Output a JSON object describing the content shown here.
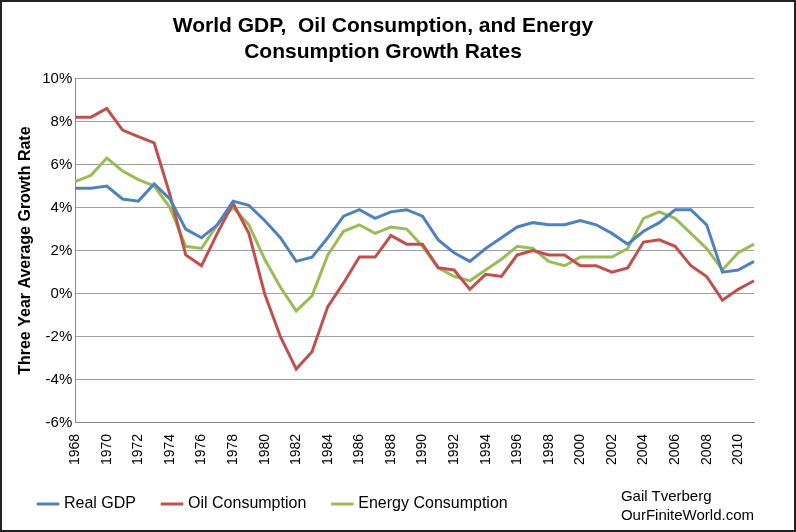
{
  "chart_data": {
    "type": "line",
    "title": [
      "World GDP,  Oil Consumption, and Energy",
      "Consumption Growth Rates"
    ],
    "y_label": "Three Year Average Growth Rate",
    "annotations": [
      "Gail Tverberg",
      "OurFiniteWorld.com"
    ],
    "categories": [
      "1968",
      null,
      "1970",
      null,
      "1972",
      null,
      "1974",
      null,
      "1976",
      null,
      "1978",
      null,
      "1980",
      null,
      "1982",
      null,
      "1984",
      null,
      "1986",
      null,
      "1988",
      null,
      "1990",
      null,
      "1992",
      null,
      "1994",
      null,
      "1996",
      null,
      "1998",
      null,
      "2000",
      null,
      "2002",
      null,
      "2004",
      null,
      "2006",
      null,
      "2008",
      null,
      "2010",
      null
    ],
    "series": [
      {
        "name": "Real GDP",
        "color": "#4f81bd",
        "values": [
          4.9,
          4.9,
          5.0,
          4.4,
          4.3,
          5.1,
          4.4,
          3.0,
          2.6,
          3.2,
          4.3,
          4.1,
          3.4,
          2.6,
          1.5,
          1.7,
          2.6,
          3.6,
          3.9,
          3.5,
          3.8,
          3.9,
          3.6,
          2.5,
          1.9,
          1.5,
          2.1,
          2.6,
          3.1,
          3.3,
          3.2,
          3.2,
          3.4,
          3.2,
          2.8,
          2.3,
          2.9,
          3.3,
          3.9,
          3.9,
          3.2,
          1.0,
          1.1,
          1.5
        ]
      },
      {
        "name": "Oil Consumption",
        "color": "#c0504d",
        "values": [
          8.2,
          8.2,
          8.6,
          7.6,
          7.3,
          7.0,
          4.6,
          1.8,
          1.3,
          2.8,
          4.2,
          2.8,
          0.0,
          -2.0,
          -3.5,
          -2.7,
          -0.6,
          0.5,
          1.7,
          1.7,
          2.7,
          2.3,
          2.3,
          1.2,
          1.1,
          0.2,
          0.9,
          0.8,
          1.8,
          2.0,
          1.8,
          1.8,
          1.3,
          1.3,
          1.0,
          1.2,
          2.4,
          2.5,
          2.2,
          1.3,
          0.8,
          -0.3,
          0.2,
          0.6
        ]
      },
      {
        "name": "Energy Consumption",
        "color": "#9bbb59",
        "values": [
          5.2,
          5.5,
          6.3,
          5.7,
          5.3,
          5.0,
          4.0,
          2.2,
          2.1,
          3.2,
          4.0,
          3.2,
          1.6,
          0.3,
          -0.8,
          -0.1,
          1.8,
          2.9,
          3.2,
          2.8,
          3.1,
          3.0,
          2.2,
          1.2,
          0.8,
          0.6,
          1.1,
          1.6,
          2.2,
          2.1,
          1.5,
          1.3,
          1.7,
          1.7,
          1.7,
          2.1,
          3.5,
          3.8,
          3.5,
          2.8,
          2.1,
          1.1,
          1.9,
          2.3
        ]
      }
    ],
    "ylim": [
      -6,
      10
    ],
    "yticks": [
      {
        "value": -6,
        "label": "-6%"
      },
      {
        "value": -4,
        "label": "-4%"
      },
      {
        "value": -2,
        "label": "-2%"
      },
      {
        "value": 0,
        "label": "0%"
      },
      {
        "value": 2,
        "label": "2%"
      },
      {
        "value": 4,
        "label": "4%"
      },
      {
        "value": 6,
        "label": "6%"
      },
      {
        "value": 8,
        "label": "8%"
      },
      {
        "value": 10,
        "label": "10%"
      }
    ],
    "grid": true,
    "legend": "bottom"
  }
}
